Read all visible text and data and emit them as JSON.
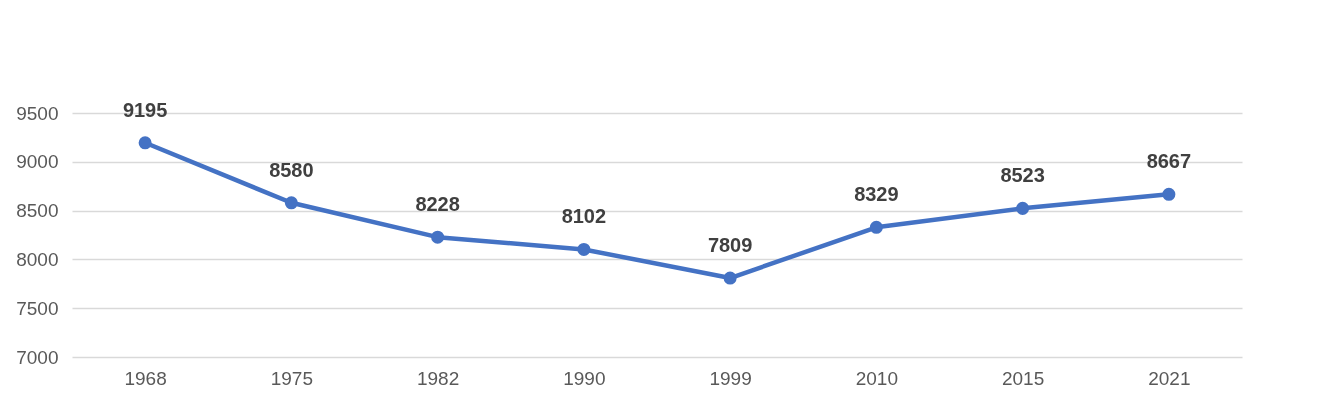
{
  "chart_data": {
    "type": "line",
    "categories": [
      "1968",
      "1975",
      "1982",
      "1990",
      "1999",
      "2010",
      "2015",
      "2021"
    ],
    "series": [
      {
        "color": "#4472c4",
        "values": [
          9195,
          8580,
          8228,
          8102,
          7809,
          8329,
          8523,
          8667
        ]
      }
    ],
    "ylim": [
      7000,
      9500
    ],
    "yticks": [
      7000,
      7500,
      8000,
      8500,
      9000,
      9500
    ],
    "grid": "y",
    "marker": "circle",
    "line_style": "solid",
    "data_labels": true,
    "legend": false
  }
}
